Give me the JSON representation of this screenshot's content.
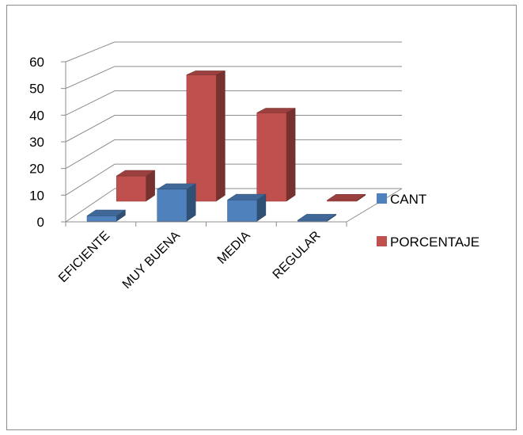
{
  "chart_data": {
    "type": "bar",
    "style": "3d-clustered-column",
    "categories": [
      "EFICIENTE",
      "MUY BUENA",
      "MEDIA",
      "REGULAR"
    ],
    "series": [
      {
        "name": "CANT",
        "values": [
          2,
          12,
          8,
          0
        ],
        "color": "#4F81BD"
      },
      {
        "name": "PORCENTAJE",
        "values": [
          10,
          50,
          35,
          0
        ],
        "color": "#C0504D"
      }
    ],
    "yticks": [
      0,
      10,
      20,
      30,
      40,
      50,
      60
    ],
    "ylim": [
      0,
      60
    ],
    "grid": true,
    "legend_position": "right"
  }
}
